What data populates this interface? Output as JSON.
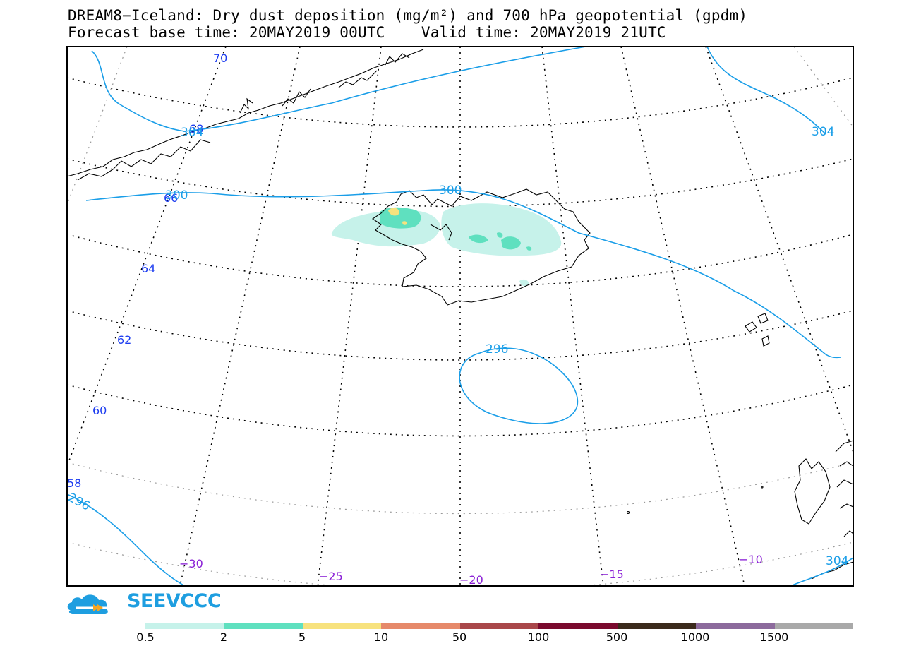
{
  "header": {
    "title_line1": "DREAM8−Iceland: Dry dust deposition (mg/m²) and 700 hPa geopotential (gpdm)",
    "title_line2": "Forecast base time: 20MAY2019 00UTC    Valid time: 20MAY2019 21UTC"
  },
  "map": {
    "latitude_labels": [
      "70",
      "68",
      "66",
      "64",
      "62",
      "60",
      "58"
    ],
    "longitude_labels": [
      "−30",
      "−25",
      "−20",
      "−15",
      "−10"
    ],
    "contour_labels": [
      "304",
      "304",
      "300",
      "300",
      "296",
      "296",
      "304"
    ],
    "colors": {
      "contour": "#1a9ee8",
      "lat_label": "#1c3cf0",
      "lon_label": "#8a1fd6",
      "coast": "#000000"
    }
  },
  "logo": {
    "text": "SEEVCCC",
    "color": "#1e9ee0"
  },
  "legend": {
    "labels": [
      "0.5",
      "2",
      "5",
      "10",
      "50",
      "100",
      "500",
      "1000",
      "1500"
    ],
    "colors": [
      "#c6f2ea",
      "#5fe0bf",
      "#f7e27e",
      "#e6896a",
      "#a9474a",
      "#7a0a2e",
      "#3b2a1c",
      "#8c6a9c",
      "#a9a9a9"
    ]
  }
}
